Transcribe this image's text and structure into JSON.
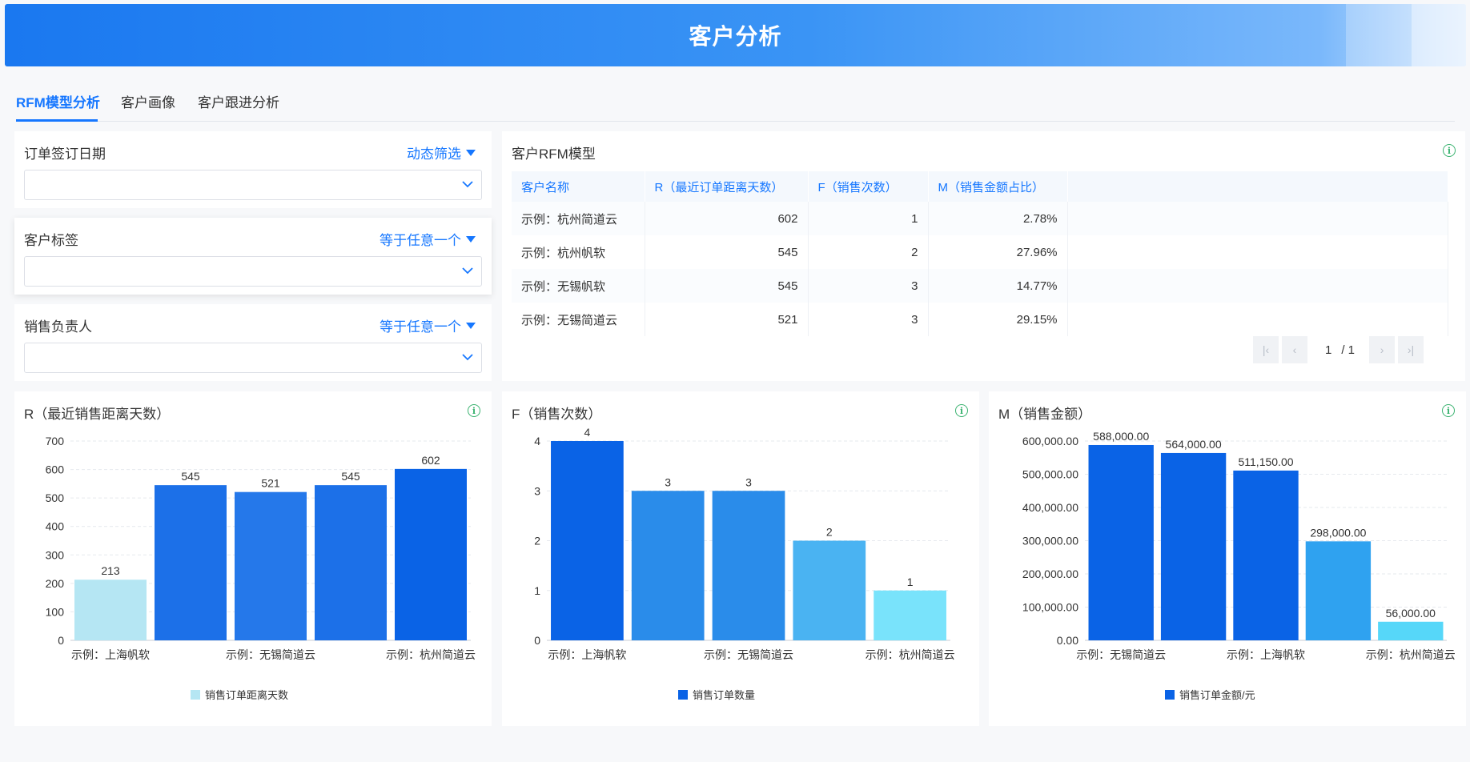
{
  "header": {
    "title": "客户分析"
  },
  "tabs": [
    {
      "label": "RFM模型分析",
      "active": true
    },
    {
      "label": "客户画像",
      "active": false
    },
    {
      "label": "客户跟进分析",
      "active": false
    }
  ],
  "filters": [
    {
      "label": "订单签订日期",
      "mode": "动态筛选",
      "value": ""
    },
    {
      "label": "客户标签",
      "mode": "等于任意一个",
      "value": ""
    },
    {
      "label": "销售负责人",
      "mode": "等于任意一个",
      "value": ""
    }
  ],
  "rfm_table": {
    "title": "客户RFM模型",
    "columns": [
      "客户名称",
      "R（最近订单距离天数）",
      "F（销售次数）",
      "M（销售金额占比）"
    ],
    "rows": [
      [
        "示例：杭州简道云",
        "602",
        "1",
        "2.78%"
      ],
      [
        "示例：杭州帆软",
        "545",
        "2",
        "27.96%"
      ],
      [
        "示例：无锡帆软",
        "545",
        "3",
        "14.77%"
      ],
      [
        "示例：无锡简道云",
        "521",
        "3",
        "29.15%"
      ]
    ],
    "pagination": {
      "current": "1",
      "total": "/ 1"
    }
  },
  "colors": {
    "accent": "#1677ff",
    "info": "#3cb371"
  },
  "chart_data": [
    {
      "type": "bar",
      "title": "R（最近销售距离天数）",
      "legend": "销售订单距离天数",
      "ylim": [
        0,
        700
      ],
      "yticks": [
        0,
        100,
        200,
        300,
        400,
        500,
        600,
        700
      ],
      "categories": [
        "示例：上海帆软",
        "",
        "示例：无锡简道云",
        "",
        "示例：杭州简道云"
      ],
      "values": [
        213,
        545,
        521,
        545,
        602
      ],
      "value_labels": [
        "213",
        "545",
        "521",
        "545",
        "602"
      ],
      "colors": [
        "#b5e6f3",
        "#1c70e8",
        "#2578ea",
        "#1c70e8",
        "#0a63e6"
      ],
      "legend_color": "#b5e6f3"
    },
    {
      "type": "bar",
      "title": "F（销售次数）",
      "legend": "销售订单数量",
      "ylim": [
        0,
        4
      ],
      "yticks": [
        0,
        1,
        2,
        3,
        4
      ],
      "categories": [
        "示例：上海帆软",
        "",
        "示例：无锡简道云",
        "",
        "示例：杭州简道云"
      ],
      "values": [
        4,
        3,
        3,
        2,
        1
      ],
      "value_labels": [
        "4",
        "3",
        "3",
        "2",
        "1"
      ],
      "colors": [
        "#0a63e6",
        "#2a8cea",
        "#2a8cea",
        "#4ab3f2",
        "#79e3fb"
      ],
      "legend_color": "#0a63e6"
    },
    {
      "type": "bar",
      "title": "M（销售金额）",
      "legend": "销售订单金额/元",
      "ylim": [
        0,
        600000
      ],
      "yticks": [
        0,
        100000,
        200000,
        300000,
        400000,
        500000,
        600000
      ],
      "ytick_labels": [
        "0.00",
        "100,000.00",
        "200,000.00",
        "300,000.00",
        "400,000.00",
        "500,000.00",
        "600,000.00"
      ],
      "categories": [
        "示例：无锡简道云",
        "",
        "示例：上海帆软",
        "",
        "示例：杭州简道云"
      ],
      "values": [
        588000,
        564000,
        511150,
        298000,
        56000
      ],
      "value_labels": [
        "588,000.00",
        "564,000.00",
        "511,150.00",
        "298,000.00",
        "56,000.00"
      ],
      "colors": [
        "#0a63e6",
        "#0a63e6",
        "#0a63e6",
        "#2fa2f0",
        "#56d7f9"
      ],
      "legend_color": "#0a63e6"
    }
  ]
}
